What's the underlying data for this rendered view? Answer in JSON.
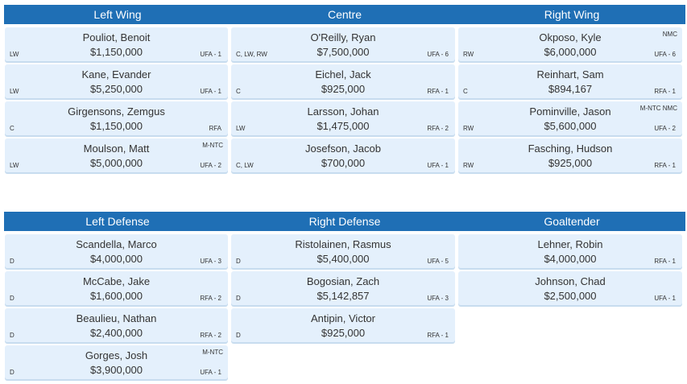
{
  "forwards": {
    "headers": [
      "Left Wing",
      "Centre",
      "Right Wing"
    ],
    "columns": [
      [
        {
          "name": "Pouliot, Benoit",
          "salary": "$1,150,000",
          "pos": "LW",
          "contract": "UFA - 1",
          "clause": ""
        },
        {
          "name": "Kane, Evander",
          "salary": "$5,250,000",
          "pos": "LW",
          "contract": "UFA - 1",
          "clause": ""
        },
        {
          "name": "Girgensons, Zemgus",
          "salary": "$1,150,000",
          "pos": "C",
          "contract": "RFA",
          "clause": ""
        },
        {
          "name": "Moulson, Matt",
          "salary": "$5,000,000",
          "pos": "LW",
          "contract": "UFA - 2",
          "clause": "M-NTC"
        }
      ],
      [
        {
          "name": "O'Reilly, Ryan",
          "salary": "$7,500,000",
          "pos": "C, LW, RW",
          "contract": "UFA - 6",
          "clause": ""
        },
        {
          "name": "Eichel, Jack",
          "salary": "$925,000",
          "pos": "C",
          "contract": "RFA - 1",
          "clause": ""
        },
        {
          "name": "Larsson, Johan",
          "salary": "$1,475,000",
          "pos": "LW",
          "contract": "RFA - 2",
          "clause": ""
        },
        {
          "name": "Josefson, Jacob",
          "salary": "$700,000",
          "pos": "C, LW",
          "contract": "UFA - 1",
          "clause": ""
        }
      ],
      [
        {
          "name": "Okposo, Kyle",
          "salary": "$6,000,000",
          "pos": "RW",
          "contract": "UFA - 6",
          "clause": "NMC"
        },
        {
          "name": "Reinhart, Sam",
          "salary": "$894,167",
          "pos": "C",
          "contract": "RFA - 1",
          "clause": ""
        },
        {
          "name": "Pominville, Jason",
          "salary": "$5,600,000",
          "pos": "RW",
          "contract": "UFA - 2",
          "clause": "M-NTC NMC"
        },
        {
          "name": "Fasching, Hudson",
          "salary": "$925,000",
          "pos": "RW",
          "contract": "RFA - 1",
          "clause": ""
        }
      ]
    ]
  },
  "defense": {
    "headers": [
      "Left Defense",
      "Right Defense",
      "Goaltender"
    ],
    "columns": [
      [
        {
          "name": "Scandella, Marco",
          "salary": "$4,000,000",
          "pos": "D",
          "contract": "UFA - 3",
          "clause": ""
        },
        {
          "name": "McCabe, Jake",
          "salary": "$1,600,000",
          "pos": "D",
          "contract": "RFA - 2",
          "clause": ""
        },
        {
          "name": "Beaulieu, Nathan",
          "salary": "$2,400,000",
          "pos": "D",
          "contract": "RFA - 2",
          "clause": ""
        },
        {
          "name": "Gorges, Josh",
          "salary": "$3,900,000",
          "pos": "D",
          "contract": "UFA - 1",
          "clause": "M-NTC"
        }
      ],
      [
        {
          "name": "Ristolainen, Rasmus",
          "salary": "$5,400,000",
          "pos": "D",
          "contract": "UFA - 5",
          "clause": ""
        },
        {
          "name": "Bogosian, Zach",
          "salary": "$5,142,857",
          "pos": "D",
          "contract": "UFA - 3",
          "clause": ""
        },
        {
          "name": "Antipin, Victor",
          "salary": "$925,000",
          "pos": "D",
          "contract": "RFA - 1",
          "clause": ""
        }
      ],
      [
        {
          "name": "Lehner, Robin",
          "salary": "$4,000,000",
          "pos": "",
          "contract": "RFA - 1",
          "clause": ""
        },
        {
          "name": "Johnson, Chad",
          "salary": "$2,500,000",
          "pos": "",
          "contract": "UFA - 1",
          "clause": ""
        }
      ]
    ]
  }
}
